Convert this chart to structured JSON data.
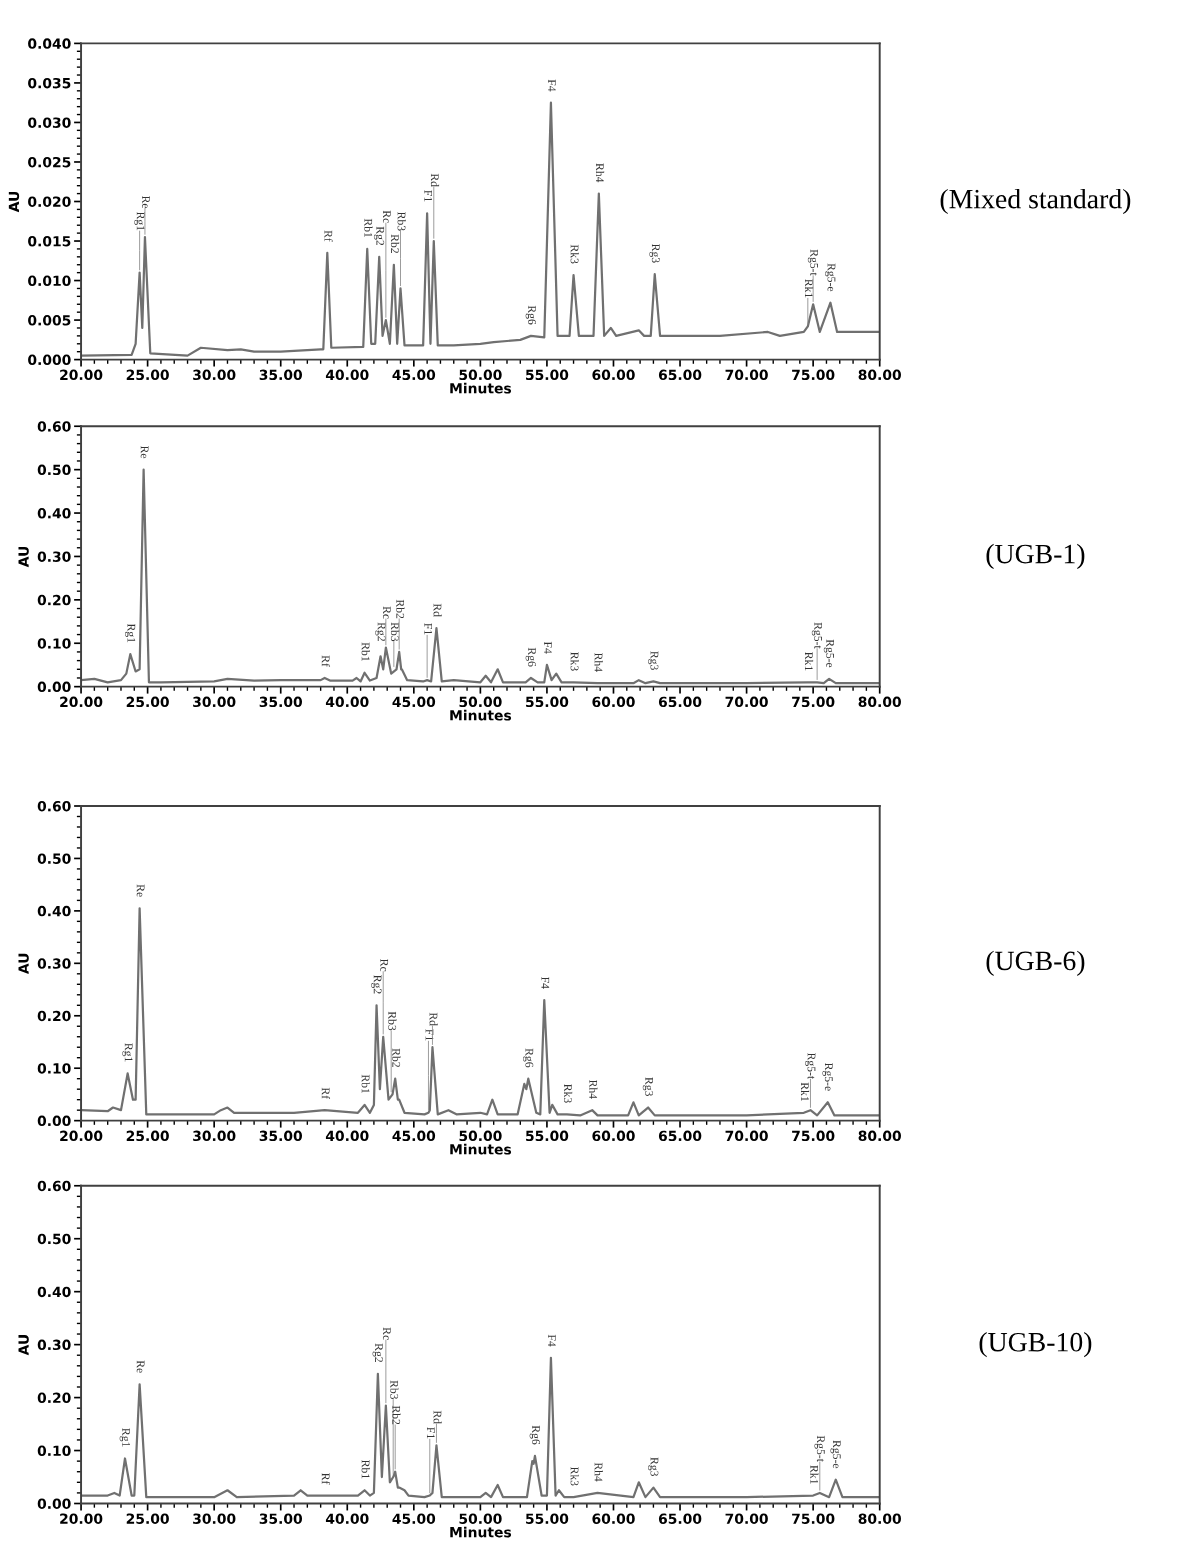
{
  "chart_data": [
    {
      "type": "line",
      "xlabel": "Minutes",
      "ylabel": "AU",
      "xlim": [
        20,
        80
      ],
      "ylim": [
        0,
        0.04
      ],
      "xticks": [
        {
          "value": 20,
          "label": "20.00"
        },
        {
          "value": 25,
          "label": "25.00"
        },
        {
          "value": 30,
          "label": "30.00"
        },
        {
          "value": 35,
          "label": "35.00"
        },
        {
          "value": 40,
          "label": "40.00"
        },
        {
          "value": 45,
          "label": "45.00"
        },
        {
          "value": 50,
          "label": "50.00"
        },
        {
          "value": 55,
          "label": "55.00"
        },
        {
          "value": 60,
          "label": "60.00"
        },
        {
          "value": 65,
          "label": "65.00"
        },
        {
          "value": 70,
          "label": "70.00"
        },
        {
          "value": 75,
          "label": "75.00"
        },
        {
          "value": 80,
          "label": "80.00"
        }
      ],
      "yticks": [
        {
          "value": 0,
          "label": "0.000"
        },
        {
          "value": 0.005,
          "label": "0.005"
        },
        {
          "value": 0.01,
          "label": "0.010"
        },
        {
          "value": 0.015,
          "label": "0.015"
        },
        {
          "value": 0.02,
          "label": "0.020"
        },
        {
          "value": 0.025,
          "label": "0.025"
        },
        {
          "value": 0.03,
          "label": "0.030"
        },
        {
          "value": 0.035,
          "label": "0.035"
        },
        {
          "value": 0.04,
          "label": "0.040"
        }
      ],
      "grid": false,
      "series": [
        {
          "color": "#707070",
          "x": [
            20,
            23.8,
            24.1,
            24.4,
            24.6,
            24.8,
            25.2,
            28,
            29,
            31,
            32,
            33,
            35,
            38,
            38.2,
            38.5,
            38.8,
            41.2,
            41.5,
            41.8,
            42.1,
            42.4,
            42.65,
            42.9,
            43.2,
            43.5,
            43.75,
            44.0,
            44.3,
            45.7,
            46.0,
            46.25,
            46.5,
            46.8,
            48,
            50,
            51,
            53,
            53.8,
            54.8,
            55.3,
            55.8,
            56.7,
            57.0,
            57.4,
            58.5,
            58.9,
            59.3,
            59.8,
            60.2,
            61.9,
            62.3,
            62.8,
            63.1,
            63.5,
            68,
            71.6,
            72.5,
            74.3,
            74.6,
            75.0,
            75.5,
            76.3,
            76.8,
            80
          ],
          "values": [
            0.0005,
            0.0006,
            0.002,
            0.011,
            0.004,
            0.0155,
            0.0008,
            0.0005,
            0.0015,
            0.0012,
            0.0013,
            0.001,
            0.001,
            0.0013,
            0.0013,
            0.0135,
            0.0015,
            0.0016,
            0.014,
            0.002,
            0.002,
            0.013,
            0.003,
            0.005,
            0.002,
            0.012,
            0.002,
            0.009,
            0.0018,
            0.0018,
            0.0185,
            0.002,
            0.015,
            0.0018,
            0.0018,
            0.002,
            0.0022,
            0.0025,
            0.003,
            0.0028,
            0.0325,
            0.003,
            0.003,
            0.0107,
            0.003,
            0.003,
            0.021,
            0.003,
            0.004,
            0.003,
            0.0037,
            0.003,
            0.003,
            0.0108,
            0.003,
            0.003,
            0.0035,
            0.003,
            0.0035,
            0.0042,
            0.007,
            0.0035,
            0.0072,
            0.0035,
            0.0035
          ]
        }
      ],
      "annotations": [
        "(Mixed standard)",
        {
          "text": "Rg1",
          "x": 24.4,
          "y": 0.011
        },
        {
          "text": "Re",
          "x": 24.8,
          "y": 0.0155
        },
        {
          "text": "Rf",
          "x": 38.5,
          "y": 0.0135
        },
        {
          "text": "Rb1",
          "x": 41.5,
          "y": 0.014
        },
        {
          "text": "Rg2",
          "x": 42.4,
          "y": 0.013
        },
        {
          "text": "Rc",
          "x": 42.9,
          "y": 0.005
        },
        {
          "text": "Rb2",
          "x": 43.5,
          "y": 0.012
        },
        {
          "text": "Rb3",
          "x": 44.0,
          "y": 0.009
        },
        {
          "text": "F1",
          "x": 46.0,
          "y": 0.0185
        },
        {
          "text": "Rd",
          "x": 46.5,
          "y": 0.015
        },
        {
          "text": "Rg6",
          "x": 53.8,
          "y": 0.003
        },
        {
          "text": "F4",
          "x": 55.3,
          "y": 0.0325
        },
        {
          "text": "Rk3",
          "x": 57.0,
          "y": 0.0107
        },
        {
          "text": "Rh4",
          "x": 58.9,
          "y": 0.021
        },
        {
          "text": "Rg3",
          "x": 63.1,
          "y": 0.0108
        },
        {
          "text": "Rk1",
          "x": 74.6,
          "y": 0.0042
        },
        {
          "text": "Rg5-t",
          "x": 75.0,
          "y": 0.007
        },
        {
          "text": "Rg5-e",
          "x": 76.3,
          "y": 0.0072
        }
      ]
    },
    {
      "type": "line",
      "xlabel": "Minutes",
      "ylabel": "AU",
      "xlim": [
        20,
        80
      ],
      "ylim": [
        0,
        0.6
      ],
      "xticks": [
        {
          "value": 20,
          "label": "20.00"
        },
        {
          "value": 25,
          "label": "25.00"
        },
        {
          "value": 30,
          "label": "30.00"
        },
        {
          "value": 35,
          "label": "35.00"
        },
        {
          "value": 40,
          "label": "40.00"
        },
        {
          "value": 45,
          "label": "45.00"
        },
        {
          "value": 50,
          "label": "50.00"
        },
        {
          "value": 55,
          "label": "55.00"
        },
        {
          "value": 60,
          "label": "60.00"
        },
        {
          "value": 65,
          "label": "65.00"
        },
        {
          "value": 70,
          "label": "70.00"
        },
        {
          "value": 75,
          "label": "75.00"
        },
        {
          "value": 80,
          "label": "80.00"
        }
      ],
      "yticks": [
        {
          "value": 0,
          "label": "0.00"
        },
        {
          "value": 0.1,
          "label": "0.10"
        },
        {
          "value": 0.2,
          "label": "0.20"
        },
        {
          "value": 0.3,
          "label": "0.30"
        },
        {
          "value": 0.4,
          "label": "0.40"
        },
        {
          "value": 0.5,
          "label": "0.50"
        },
        {
          "value": 0.6,
          "label": "0.60"
        }
      ],
      "grid": false,
      "series": [
        {
          "color": "#707070",
          "x": [
            20,
            21,
            22,
            23,
            23.4,
            23.7,
            24.1,
            24.4,
            24.7,
            25.1,
            26,
            30,
            31,
            33,
            35,
            38,
            38.3,
            38.7,
            40.4,
            40.7,
            41.0,
            41.3,
            41.7,
            42.2,
            42.5,
            42.7,
            42.9,
            43.3,
            43.7,
            43.9,
            44.05,
            44.1,
            44.5,
            45.7,
            46.0,
            46.3,
            46.7,
            47.1,
            48,
            50,
            50.4,
            50.8,
            51.3,
            51.7,
            53.4,
            53.8,
            54.3,
            54.8,
            55.0,
            55.35,
            55.7,
            56.1,
            57,
            58.8,
            61.5,
            61.9,
            62.4,
            63,
            63.5,
            70,
            74.6,
            75.3,
            75.8,
            76.2,
            76.7,
            80
          ],
          "values": [
            0.015,
            0.018,
            0.01,
            0.015,
            0.03,
            0.075,
            0.035,
            0.04,
            0.5,
            0.01,
            0.01,
            0.012,
            0.018,
            0.014,
            0.015,
            0.015,
            0.02,
            0.014,
            0.014,
            0.02,
            0.012,
            0.032,
            0.014,
            0.02,
            0.07,
            0.04,
            0.09,
            0.03,
            0.04,
            0.08,
            0.04,
            0.04,
            0.015,
            0.012,
            0.015,
            0.012,
            0.135,
            0.012,
            0.015,
            0.01,
            0.025,
            0.01,
            0.04,
            0.01,
            0.01,
            0.02,
            0.01,
            0.01,
            0.05,
            0.015,
            0.03,
            0.01,
            0.01,
            0.008,
            0.008,
            0.015,
            0.008,
            0.012,
            0.008,
            0.008,
            0.01,
            0.01,
            0.008,
            0.018,
            0.008,
            0.008
          ]
        }
      ],
      "annotations": [
        "(UGB-1)",
        {
          "text": "Rg1",
          "x": 23.7,
          "y": 0.075
        },
        {
          "text": "Re",
          "x": 24.7,
          "y": 0.5
        },
        {
          "text": "Rf",
          "x": 38.3,
          "y": 0.02
        },
        {
          "text": "Rb1",
          "x": 41.3,
          "y": 0.032
        },
        {
          "text": "Rg2",
          "x": 42.5,
          "y": 0.07
        },
        {
          "text": "Rc",
          "x": 42.9,
          "y": 0.09
        },
        {
          "text": "Rb3",
          "x": 43.5,
          "y": 0.04
        },
        {
          "text": "Rb2",
          "x": 43.9,
          "y": 0.08
        },
        {
          "text": "F1",
          "x": 46.0,
          "y": 0.015
        },
        {
          "text": "Rd",
          "x": 46.7,
          "y": 0.135
        },
        {
          "text": "Rg6",
          "x": 53.8,
          "y": 0.02
        },
        {
          "text": "F4",
          "x": 55.0,
          "y": 0.05
        },
        {
          "text": "Rk3",
          "x": 57,
          "y": 0.01
        },
        {
          "text": "Rh4",
          "x": 58.8,
          "y": 0.008
        },
        {
          "text": "Rg3",
          "x": 63,
          "y": 0.012
        },
        {
          "text": "Rk1",
          "x": 74.6,
          "y": 0.01
        },
        {
          "text": "Rg5-t",
          "x": 75.3,
          "y": 0.01
        },
        {
          "text": "Rg5-e",
          "x": 76.2,
          "y": 0.018
        }
      ]
    },
    {
      "type": "line",
      "xlabel": "Minutes",
      "ylabel": "AU",
      "xlim": [
        20,
        80
      ],
      "ylim": [
        0,
        0.6
      ],
      "xticks": [
        {
          "value": 20,
          "label": "20.00"
        },
        {
          "value": 25,
          "label": "25.00"
        },
        {
          "value": 30,
          "label": "30.00"
        },
        {
          "value": 35,
          "label": "35.00"
        },
        {
          "value": 40,
          "label": "40.00"
        },
        {
          "value": 45,
          "label": "45.00"
        },
        {
          "value": 50,
          "label": "50.00"
        },
        {
          "value": 55,
          "label": "55.00"
        },
        {
          "value": 60,
          "label": "60.00"
        },
        {
          "value": 65,
          "label": "65.00"
        },
        {
          "value": 70,
          "label": "70.00"
        },
        {
          "value": 75,
          "label": "75.00"
        },
        {
          "value": 80,
          "label": "80.00"
        }
      ],
      "yticks": [
        {
          "value": 0,
          "label": "0.00"
        },
        {
          "value": 0.1,
          "label": "0.10"
        },
        {
          "value": 0.2,
          "label": "0.20"
        },
        {
          "value": 0.3,
          "label": "0.30"
        },
        {
          "value": 0.4,
          "label": "0.40"
        },
        {
          "value": 0.5,
          "label": "0.50"
        },
        {
          "value": 0.6,
          "label": "0.60"
        }
      ],
      "grid": false,
      "series": [
        {
          "color": "#707070",
          "x": [
            20,
            22,
            22.4,
            23.0,
            23.5,
            23.9,
            24.1,
            24.4,
            24.9,
            26,
            30,
            30.5,
            31,
            31.5,
            36,
            38.3,
            40.8,
            41.3,
            41.7,
            42.0,
            42.2,
            42.45,
            42.7,
            43.1,
            43.4,
            43.6,
            43.8,
            43.9,
            44.3,
            45.8,
            46.1,
            46.2,
            46.4,
            46.8,
            47.6,
            48.2,
            50,
            50.5,
            50.9,
            51.3,
            52.8,
            53.3,
            53.45,
            53.6,
            54.2,
            54.5,
            54.8,
            55.2,
            55.4,
            55.8,
            56.5,
            57.5,
            58.4,
            58.8,
            61.1,
            61.5,
            61.9,
            62.6,
            63.1,
            70,
            74.3,
            74.8,
            75.3,
            76.1,
            76.6,
            80
          ],
          "values": [
            0.02,
            0.018,
            0.025,
            0.02,
            0.09,
            0.04,
            0.04,
            0.405,
            0.012,
            0.012,
            0.012,
            0.02,
            0.025,
            0.015,
            0.015,
            0.02,
            0.015,
            0.03,
            0.015,
            0.03,
            0.22,
            0.06,
            0.16,
            0.04,
            0.05,
            0.08,
            0.04,
            0.04,
            0.015,
            0.012,
            0.015,
            0.02,
            0.14,
            0.012,
            0.02,
            0.012,
            0.015,
            0.012,
            0.04,
            0.012,
            0.012,
            0.07,
            0.06,
            0.08,
            0.015,
            0.012,
            0.23,
            0.015,
            0.03,
            0.012,
            0.012,
            0.01,
            0.02,
            0.01,
            0.01,
            0.035,
            0.01,
            0.025,
            0.01,
            0.01,
            0.015,
            0.02,
            0.01,
            0.035,
            0.01,
            0.01
          ]
        }
      ],
      "annotations": [
        "(UGB-6)",
        {
          "text": "Rg1",
          "x": 23.5,
          "y": 0.09
        },
        {
          "text": "Re",
          "x": 24.4,
          "y": 0.405
        },
        {
          "text": "Rf",
          "x": 38.3,
          "y": 0.02
        },
        {
          "text": "Rb1",
          "x": 41.3,
          "y": 0.03
        },
        {
          "text": "Rg2",
          "x": 42.2,
          "y": 0.22
        },
        {
          "text": "Rc",
          "x": 42.7,
          "y": 0.16
        },
        {
          "text": "Rb3",
          "x": 43.3,
          "y": 0.05
        },
        {
          "text": "Rb2",
          "x": 43.6,
          "y": 0.08
        },
        {
          "text": "F1",
          "x": 46.1,
          "y": 0.015
        },
        {
          "text": "Rd",
          "x": 46.4,
          "y": 0.14
        },
        {
          "text": "Rg6",
          "x": 53.6,
          "y": 0.08
        },
        {
          "text": "F4",
          "x": 54.8,
          "y": 0.23
        },
        {
          "text": "Rk3",
          "x": 56.5,
          "y": 0.012
        },
        {
          "text": "Rh4",
          "x": 58.4,
          "y": 0.02
        },
        {
          "text": "Rg3",
          "x": 62.6,
          "y": 0.025
        },
        {
          "text": "Rk1",
          "x": 74.3,
          "y": 0.015
        },
        {
          "text": "Rg5-t",
          "x": 74.8,
          "y": 0.02
        },
        {
          "text": "Rg5-e",
          "x": 76.1,
          "y": 0.035
        }
      ]
    },
    {
      "type": "line",
      "xlabel": "Minutes",
      "ylabel": "AU",
      "xlim": [
        20,
        80
      ],
      "ylim": [
        0,
        0.6
      ],
      "xticks": [
        {
          "value": 20,
          "label": "20.00"
        },
        {
          "value": 25,
          "label": "25.00"
        },
        {
          "value": 30,
          "label": "30.00"
        },
        {
          "value": 35,
          "label": "35.00"
        },
        {
          "value": 40,
          "label": "40.00"
        },
        {
          "value": 45,
          "label": "45.00"
        },
        {
          "value": 50,
          "label": "50.00"
        },
        {
          "value": 55,
          "label": "55.00"
        },
        {
          "value": 60,
          "label": "60.00"
        },
        {
          "value": 65,
          "label": "65.00"
        },
        {
          "value": 70,
          "label": "70.00"
        },
        {
          "value": 75,
          "label": "75.00"
        },
        {
          "value": 80,
          "label": "80.00"
        }
      ],
      "yticks": [
        {
          "value": 0,
          "label": "0.00"
        },
        {
          "value": 0.1,
          "label": "0.10"
        },
        {
          "value": 0.2,
          "label": "0.20"
        },
        {
          "value": 0.3,
          "label": "0.30"
        },
        {
          "value": 0.4,
          "label": "0.40"
        },
        {
          "value": 0.5,
          "label": "0.50"
        },
        {
          "value": 0.6,
          "label": "0.60"
        }
      ],
      "grid": false,
      "series": [
        {
          "color": "#707070",
          "x": [
            20,
            22,
            22.5,
            22.9,
            23.3,
            23.8,
            24.0,
            24.4,
            24.9,
            26,
            30,
            31,
            31.7,
            36,
            36.5,
            37,
            38.3,
            40.8,
            41.3,
            41.7,
            42.0,
            42.3,
            42.6,
            42.9,
            43.2,
            43.45,
            43.6,
            43.8,
            43.9,
            44.3,
            44.6,
            45.8,
            46.2,
            46.4,
            46.7,
            47.1,
            50,
            50.4,
            50.8,
            51.3,
            51.7,
            53.5,
            53.9,
            54.0,
            54.1,
            54.6,
            55.0,
            55.3,
            55.65,
            55.9,
            56.3,
            57,
            58.8,
            61.5,
            61.9,
            62.4,
            63,
            63.5,
            70,
            75,
            75.5,
            76.2,
            76.7,
            77.2,
            80
          ],
          "values": [
            0.015,
            0.015,
            0.02,
            0.015,
            0.085,
            0.015,
            0.015,
            0.225,
            0.012,
            0.012,
            0.012,
            0.025,
            0.012,
            0.015,
            0.025,
            0.015,
            0.015,
            0.015,
            0.025,
            0.015,
            0.02,
            0.245,
            0.05,
            0.185,
            0.04,
            0.05,
            0.06,
            0.03,
            0.03,
            0.025,
            0.015,
            0.012,
            0.015,
            0.02,
            0.11,
            0.012,
            0.012,
            0.02,
            0.012,
            0.035,
            0.012,
            0.012,
            0.08,
            0.075,
            0.09,
            0.015,
            0.015,
            0.275,
            0.015,
            0.025,
            0.012,
            0.012,
            0.02,
            0.012,
            0.04,
            0.012,
            0.03,
            0.012,
            0.012,
            0.015,
            0.02,
            0.012,
            0.045,
            0.012,
            0.012
          ]
        }
      ],
      "annotations": [
        "(UGB-10)",
        {
          "text": "Rg1",
          "x": 23.3,
          "y": 0.085
        },
        {
          "text": "Re",
          "x": 24.4,
          "y": 0.225
        },
        {
          "text": "Rf",
          "x": 38.3,
          "y": 0.015
        },
        {
          "text": "Rb1",
          "x": 41.3,
          "y": 0.025
        },
        {
          "text": "Rg2",
          "x": 42.3,
          "y": 0.245
        },
        {
          "text": "Rc",
          "x": 42.9,
          "y": 0.185
        },
        {
          "text": "Rb3",
          "x": 43.45,
          "y": 0.05
        },
        {
          "text": "Rb2",
          "x": 43.6,
          "y": 0.06
        },
        {
          "text": "F1",
          "x": 46.2,
          "y": 0.015
        },
        {
          "text": "Rd",
          "x": 46.7,
          "y": 0.11
        },
        {
          "text": "Rg6",
          "x": 54.1,
          "y": 0.09
        },
        {
          "text": "F4",
          "x": 55.3,
          "y": 0.275
        },
        {
          "text": "Rk3",
          "x": 57,
          "y": 0.012
        },
        {
          "text": "Rh4",
          "x": 58.8,
          "y": 0.02
        },
        {
          "text": "Rg3",
          "x": 63,
          "y": 0.03
        },
        {
          "text": "Rk1",
          "x": 75,
          "y": 0.015
        },
        {
          "text": "Rg5-t",
          "x": 75.5,
          "y": 0.02
        },
        {
          "text": "Rg5-e",
          "x": 76.7,
          "y": 0.045
        }
      ]
    }
  ]
}
